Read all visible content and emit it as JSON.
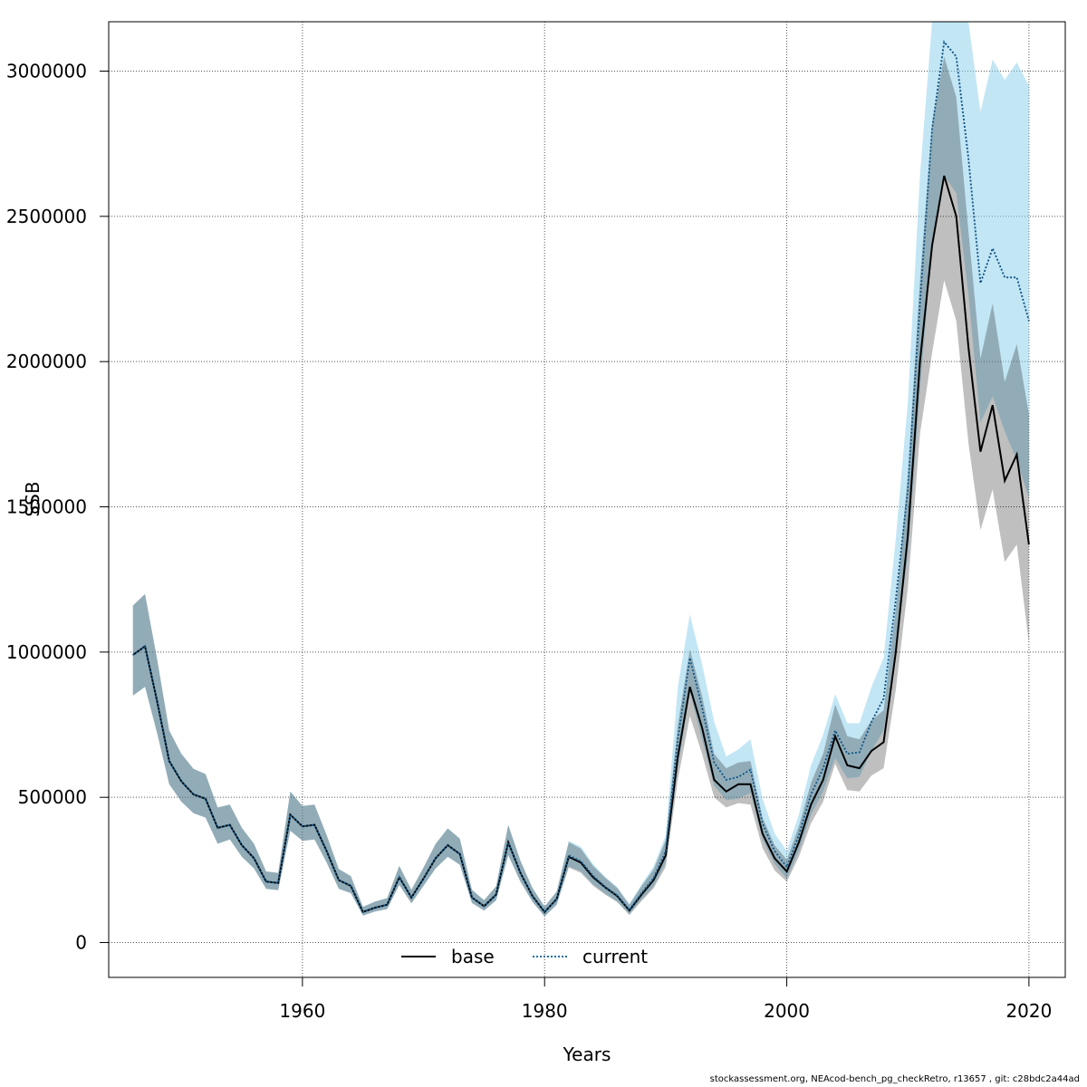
{
  "footer": "stockassessment.org, NEAcod-bench_pg_checkRetro, r13657 , git: c28bdc2a44ad",
  "colors": {
    "base_band": "#000000",
    "current_band": "#87ceeb",
    "base_line": "#000000",
    "current_line": "#1f6ea6",
    "grid": "#555555"
  },
  "chart_data": {
    "type": "line",
    "title": "",
    "xlabel": "Years",
    "ylabel": "SSB",
    "xlim": [
      1944,
      2023
    ],
    "ylim": [
      -120000,
      3170000
    ],
    "x_ticks": [
      1960,
      1980,
      2000,
      2020
    ],
    "y_ticks": [
      0,
      500000,
      1000000,
      1500000,
      2000000,
      2500000,
      3000000
    ],
    "grid": true,
    "legend_position": "bottom-center",
    "x": [
      1946,
      1947,
      1948,
      1949,
      1950,
      1951,
      1952,
      1953,
      1954,
      1955,
      1956,
      1957,
      1958,
      1959,
      1960,
      1961,
      1962,
      1963,
      1964,
      1965,
      1966,
      1967,
      1968,
      1969,
      1970,
      1971,
      1972,
      1973,
      1974,
      1975,
      1976,
      1977,
      1978,
      1979,
      1980,
      1981,
      1982,
      1983,
      1984,
      1985,
      1986,
      1987,
      1988,
      1989,
      1990,
      1991,
      1992,
      1993,
      1994,
      1995,
      1996,
      1997,
      1998,
      1999,
      2000,
      2001,
      2002,
      2003,
      2004,
      2005,
      2006,
      2007,
      2008,
      2009,
      2010,
      2011,
      2012,
      2013,
      2014,
      2015,
      2016,
      2017,
      2018,
      2019,
      2020
    ],
    "series": [
      {
        "name": "base",
        "style": "solid",
        "values": [
          990000,
          1020000,
          830000,
          625000,
          555000,
          510000,
          495000,
          395000,
          405000,
          335000,
          290000,
          210000,
          205000,
          440000,
          400000,
          405000,
          315000,
          215000,
          195000,
          105000,
          120000,
          130000,
          225000,
          155000,
          220000,
          290000,
          335000,
          305000,
          155000,
          125000,
          165000,
          345000,
          240000,
          160000,
          105000,
          150000,
          295000,
          275000,
          225000,
          190000,
          160000,
          110000,
          165000,
          215000,
          300000,
          640000,
          880000,
          740000,
          560000,
          520000,
          545000,
          545000,
          375000,
          290000,
          245000,
          345000,
          475000,
          560000,
          710000,
          610000,
          600000,
          660000,
          690000,
          1000000,
          1400000,
          2000000,
          2400000,
          2640000,
          2500000,
          2050000,
          1690000,
          1850000,
          1590000,
          1680000,
          1370000
        ],
        "lower": [
          850000,
          880000,
          720000,
          545000,
          485000,
          445000,
          430000,
          340000,
          355000,
          295000,
          255000,
          185000,
          180000,
          385000,
          350000,
          355000,
          275000,
          185000,
          170000,
          93000,
          107000,
          115000,
          198000,
          135000,
          195000,
          255000,
          295000,
          268000,
          136000,
          110000,
          145000,
          300000,
          210000,
          140000,
          90000,
          130000,
          258000,
          240000,
          196000,
          165000,
          139000,
          95000,
          143000,
          187000,
          260000,
          560000,
          780000,
          650000,
          500000,
          465000,
          480000,
          475000,
          325000,
          248000,
          210000,
          295000,
          410000,
          485000,
          615000,
          525000,
          520000,
          575000,
          600000,
          870000,
          1220000,
          1750000,
          2030000,
          2280000,
          2140000,
          1720000,
          1420000,
          1560000,
          1310000,
          1370000,
          1030000
        ],
        "upper": [
          1160000,
          1200000,
          975000,
          730000,
          650000,
          598000,
          580000,
          465000,
          475000,
          395000,
          340000,
          245000,
          240000,
          520000,
          470000,
          475000,
          370000,
          253000,
          229000,
          123000,
          141000,
          153000,
          264000,
          182000,
          258000,
          340000,
          393000,
          358000,
          182000,
          146000,
          194000,
          405000,
          282000,
          188000,
          124000,
          176000,
          346000,
          323000,
          264000,
          223000,
          188000,
          130000,
          194000,
          252000,
          352000,
          750000,
          1010000,
          850000,
          650000,
          600000,
          620000,
          625000,
          430000,
          335000,
          285000,
          400000,
          550000,
          650000,
          820000,
          710000,
          700000,
          765000,
          800000,
          1150000,
          1610000,
          2280000,
          2820000,
          3050000,
          2910000,
          2450000,
          2010000,
          2200000,
          1930000,
          2060000,
          1820000
        ]
      },
      {
        "name": "current",
        "style": "dotted",
        "values": [
          990000,
          1020000,
          830000,
          625000,
          555000,
          510000,
          495000,
          395000,
          405000,
          335000,
          290000,
          210000,
          205000,
          440000,
          400000,
          405000,
          315000,
          215000,
          195000,
          105000,
          120000,
          130000,
          225000,
          155000,
          220000,
          290000,
          335000,
          305000,
          155000,
          125000,
          165000,
          345000,
          240000,
          160000,
          105000,
          150000,
          300000,
          280000,
          230000,
          192000,
          162000,
          112000,
          170000,
          222000,
          315000,
          700000,
          980000,
          810000,
          620000,
          560000,
          570000,
          595000,
          410000,
          315000,
          260000,
          370000,
          510000,
          600000,
          730000,
          650000,
          655000,
          760000,
          840000,
          1180000,
          1560000,
          2200000,
          2800000,
          3100000,
          3050000,
          2700000,
          2270000,
          2390000,
          2290000,
          2290000,
          2140000
        ],
        "lower": [
          850000,
          880000,
          720000,
          545000,
          485000,
          445000,
          430000,
          340000,
          355000,
          295000,
          255000,
          185000,
          180000,
          385000,
          350000,
          355000,
          275000,
          185000,
          170000,
          93000,
          107000,
          115000,
          198000,
          135000,
          195000,
          255000,
          295000,
          268000,
          136000,
          110000,
          145000,
          300000,
          210000,
          140000,
          90000,
          130000,
          262000,
          245000,
          200000,
          168000,
          141000,
          97000,
          148000,
          193000,
          275000,
          600000,
          860000,
          700000,
          540000,
          490000,
          495000,
          515000,
          355000,
          270000,
          220000,
          315000,
          440000,
          520000,
          635000,
          565000,
          570000,
          660000,
          730000,
          1020000,
          1330000,
          1900000,
          2400000,
          2640000,
          2580000,
          2230000,
          1790000,
          1880000,
          1760000,
          1660000,
          1530000
        ],
        "upper": [
          1160000,
          1200000,
          975000,
          730000,
          650000,
          598000,
          580000,
          465000,
          475000,
          395000,
          340000,
          245000,
          240000,
          520000,
          470000,
          475000,
          370000,
          253000,
          229000,
          123000,
          141000,
          153000,
          264000,
          182000,
          258000,
          340000,
          393000,
          358000,
          182000,
          146000,
          194000,
          405000,
          282000,
          188000,
          124000,
          176000,
          350000,
          330000,
          270000,
          226000,
          191000,
          133000,
          200000,
          262000,
          368000,
          880000,
          1130000,
          960000,
          760000,
          640000,
          665000,
          700000,
          495000,
          375000,
          315000,
          440000,
          610000,
          715000,
          855000,
          755000,
          755000,
          880000,
          980000,
          1390000,
          1860000,
          2640000,
          3170000,
          3170000,
          3170000,
          3170000,
          2860000,
          3040000,
          2970000,
          3030000,
          2950000
        ]
      }
    ]
  }
}
